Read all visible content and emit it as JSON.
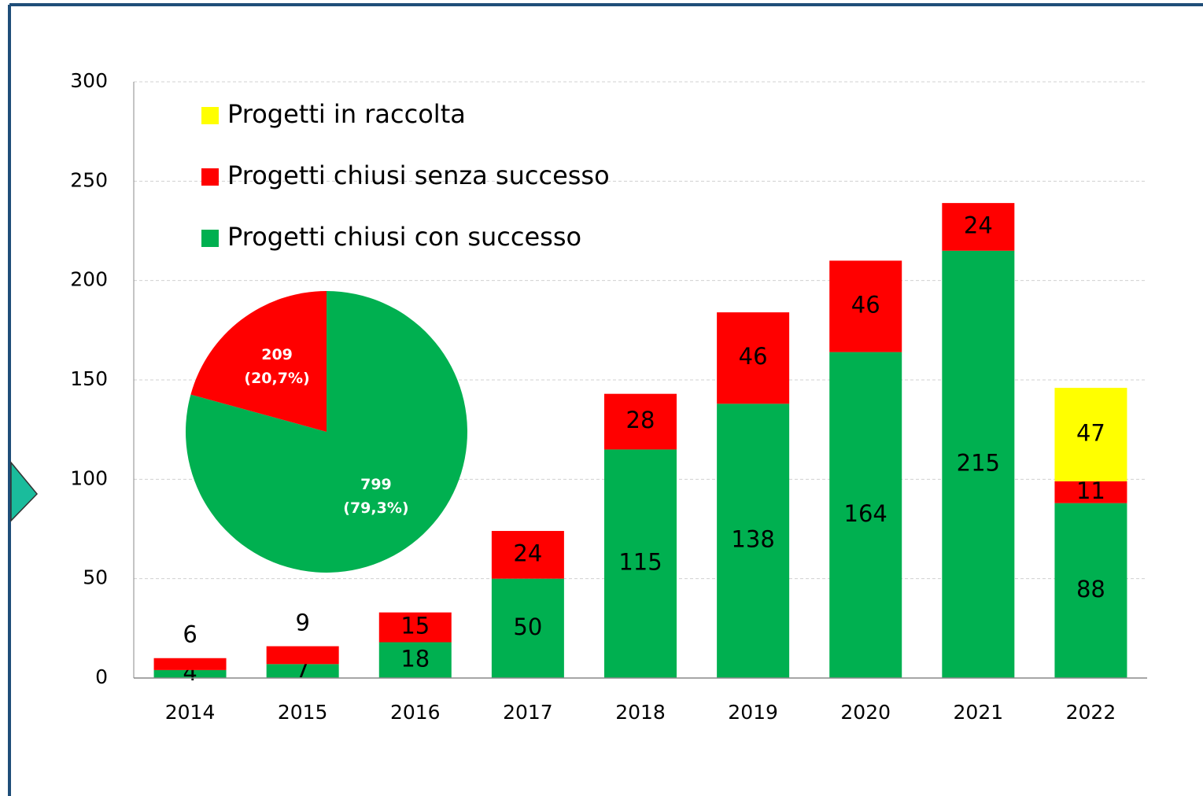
{
  "chart_data": [
    {
      "type": "stacked_bar",
      "categories": [
        "2014",
        "2015",
        "2016",
        "2017",
        "2018",
        "2019",
        "2020",
        "2021",
        "2022"
      ],
      "series": [
        {
          "name": "Progetti chiusi con successo",
          "color": "#00b050",
          "values": [
            4,
            7,
            18,
            50,
            115,
            138,
            164,
            215,
            88
          ]
        },
        {
          "name": "Progetti chiusi senza successo",
          "color": "#ff0000",
          "values": [
            6,
            9,
            15,
            24,
            28,
            46,
            46,
            24,
            11
          ]
        },
        {
          "name": "Progetti in raccolta",
          "color": "#ffff00",
          "values": [
            null,
            null,
            null,
            null,
            null,
            null,
            null,
            null,
            47
          ]
        }
      ],
      "ylim": [
        0,
        300
      ],
      "yticks": [
        0,
        50,
        100,
        150,
        200,
        250,
        300
      ],
      "grid": true,
      "legend": "upper left"
    },
    {
      "type": "pie",
      "categories": [
        "Progetti chiusi con successo",
        "Progetti chiusi senza successo"
      ],
      "values": [
        799,
        209
      ],
      "value_labels": [
        [
          "799",
          "(79,3%)"
        ],
        [
          "209",
          "(20,7%)"
        ]
      ],
      "colors": [
        "#00b050",
        "#ff0000"
      ]
    }
  ]
}
